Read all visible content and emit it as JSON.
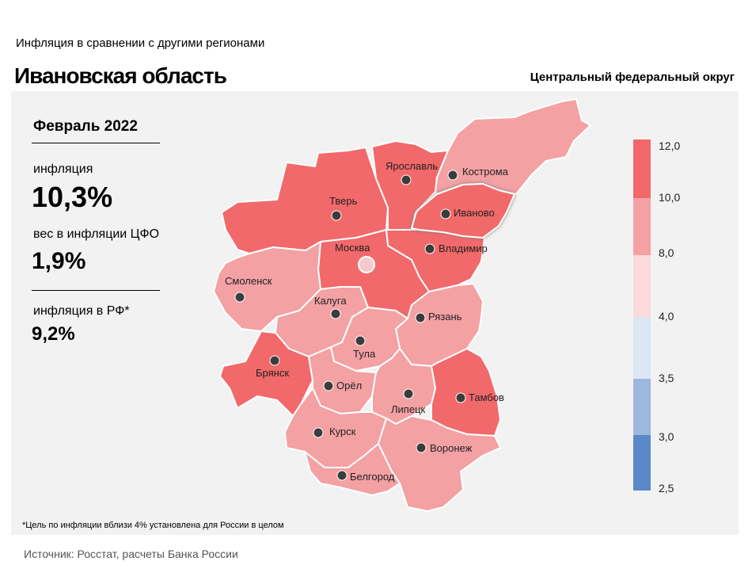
{
  "header": {
    "supertitle": "Инфляция  в сравнении  с другими  регионами",
    "title": "Ивановская область",
    "district": "Центральный федеральный округ"
  },
  "summary": {
    "period": "Февраль 2022",
    "inflation_label": "инфляция",
    "inflation_value": "10,3%",
    "weight_label": "вес в инфляции  ЦФО",
    "weight_value": "1,9%",
    "rf_label": "инфляция  в РФ*",
    "rf_value": "9,2%"
  },
  "regions": [
    {
      "id": "yaroslavl",
      "label": "Ярославль",
      "color": "#f2696b"
    },
    {
      "id": "kostroma",
      "label": "Кострома",
      "color": "#f4a1a4"
    },
    {
      "id": "tver",
      "label": "Тверь",
      "color": "#f2696b"
    },
    {
      "id": "ivanovo",
      "label": "Иваново",
      "color": "#f2696b",
      "highlight": true
    },
    {
      "id": "moscow",
      "label": "Москва",
      "color": "#f2696b",
      "capital": true
    },
    {
      "id": "vladimir",
      "label": "Владимир",
      "color": "#f2696b"
    },
    {
      "id": "smolensk",
      "label": "Смоленск",
      "color": "#f4a1a4"
    },
    {
      "id": "kaluga",
      "label": "Калуга",
      "color": "#f4a1a4"
    },
    {
      "id": "ryazan",
      "label": "Рязань",
      "color": "#f4a1a4"
    },
    {
      "id": "tula",
      "label": "Тула",
      "color": "#f4a1a4"
    },
    {
      "id": "bryansk",
      "label": "Брянск",
      "color": "#f2696b"
    },
    {
      "id": "orel",
      "label": "Орёл",
      "color": "#f4a1a4"
    },
    {
      "id": "lipetsk",
      "label": "Липецк",
      "color": "#f4a1a4"
    },
    {
      "id": "tambov",
      "label": "Тамбов",
      "color": "#f2696b"
    },
    {
      "id": "kursk",
      "label": "Курск",
      "color": "#f4a1a4"
    },
    {
      "id": "voronezh",
      "label": "Воронеж",
      "color": "#f4a1a4"
    },
    {
      "id": "belgorod",
      "label": "Белгород",
      "color": "#f4a1a4"
    }
  ],
  "legend": {
    "ticks": [
      "12,0",
      "10,0",
      "8,0",
      "4,0",
      "3,5",
      "3,0",
      "2,5"
    ],
    "colors": [
      "#f2696b",
      "#f4a1a4",
      "#fadadd",
      "#dce6f4",
      "#9db8de",
      "#5b88c8"
    ]
  },
  "footnote": "*Цель по инфляции вблизи 4% установлена для России в целом",
  "source": "Источник: Росстат, расчеты Банка России"
}
